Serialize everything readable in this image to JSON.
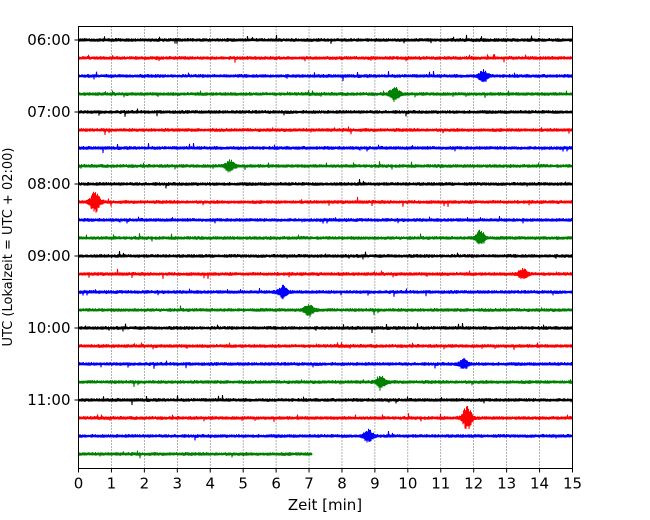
{
  "chart_data": {
    "type": "line",
    "subtype": "helicorder",
    "xlabel": "Zeit  [min]",
    "ylabel": "UTC (Lokalzeit = UTC + 02:00)",
    "xlim": [
      0,
      15
    ],
    "x_ticks": [
      "0",
      "1",
      "2",
      "3",
      "4",
      "5",
      "6",
      "7",
      "8",
      "9",
      "10",
      "11",
      "12",
      "13",
      "14",
      "15"
    ],
    "y_tick_labels": [
      "06:00",
      "07:00",
      "08:00",
      "09:00",
      "10:00",
      "11:00"
    ],
    "grid": "vertical-dotted",
    "minutes_per_line": 15,
    "line_colors": [
      "#000000",
      "#ff0000",
      "#0000ff",
      "#008000"
    ],
    "trace_start_labels": [
      "06:00",
      "06:15",
      "06:30",
      "06:45",
      "07:00",
      "07:15",
      "07:30",
      "07:45",
      "08:00",
      "08:15",
      "08:30",
      "08:45",
      "09:00",
      "09:15",
      "09:30",
      "09:45",
      "10:00",
      "10:15",
      "10:30",
      "10:45",
      "11:00",
      "11:15",
      "11:30",
      "11:45"
    ],
    "trace_durations_min": [
      15,
      15,
      15,
      15,
      15,
      15,
      15,
      15,
      15,
      15,
      15,
      15,
      15,
      15,
      15,
      15,
      15,
      15,
      15,
      15,
      15,
      15,
      15,
      7.1
    ],
    "events": [
      {
        "trace": 2,
        "at_min": 12.3,
        "amp": 2.5
      },
      {
        "trace": 3,
        "at_min": 9.6,
        "amp": 3.0
      },
      {
        "trace": 7,
        "at_min": 4.6,
        "amp": 2.5
      },
      {
        "trace": 9,
        "at_min": 0.5,
        "amp": 4.5
      },
      {
        "trace": 11,
        "at_min": 12.2,
        "amp": 3.2
      },
      {
        "trace": 13,
        "at_min": 13.5,
        "amp": 2.2
      },
      {
        "trace": 14,
        "at_min": 6.2,
        "amp": 2.5
      },
      {
        "trace": 15,
        "at_min": 7.0,
        "amp": 2.5
      },
      {
        "trace": 18,
        "at_min": 11.7,
        "amp": 2.0
      },
      {
        "trace": 19,
        "at_min": 9.2,
        "amp": 2.5
      },
      {
        "trace": 21,
        "at_min": 11.8,
        "amp": 5.0
      },
      {
        "trace": 22,
        "at_min": 8.8,
        "amp": 2.5
      }
    ]
  }
}
